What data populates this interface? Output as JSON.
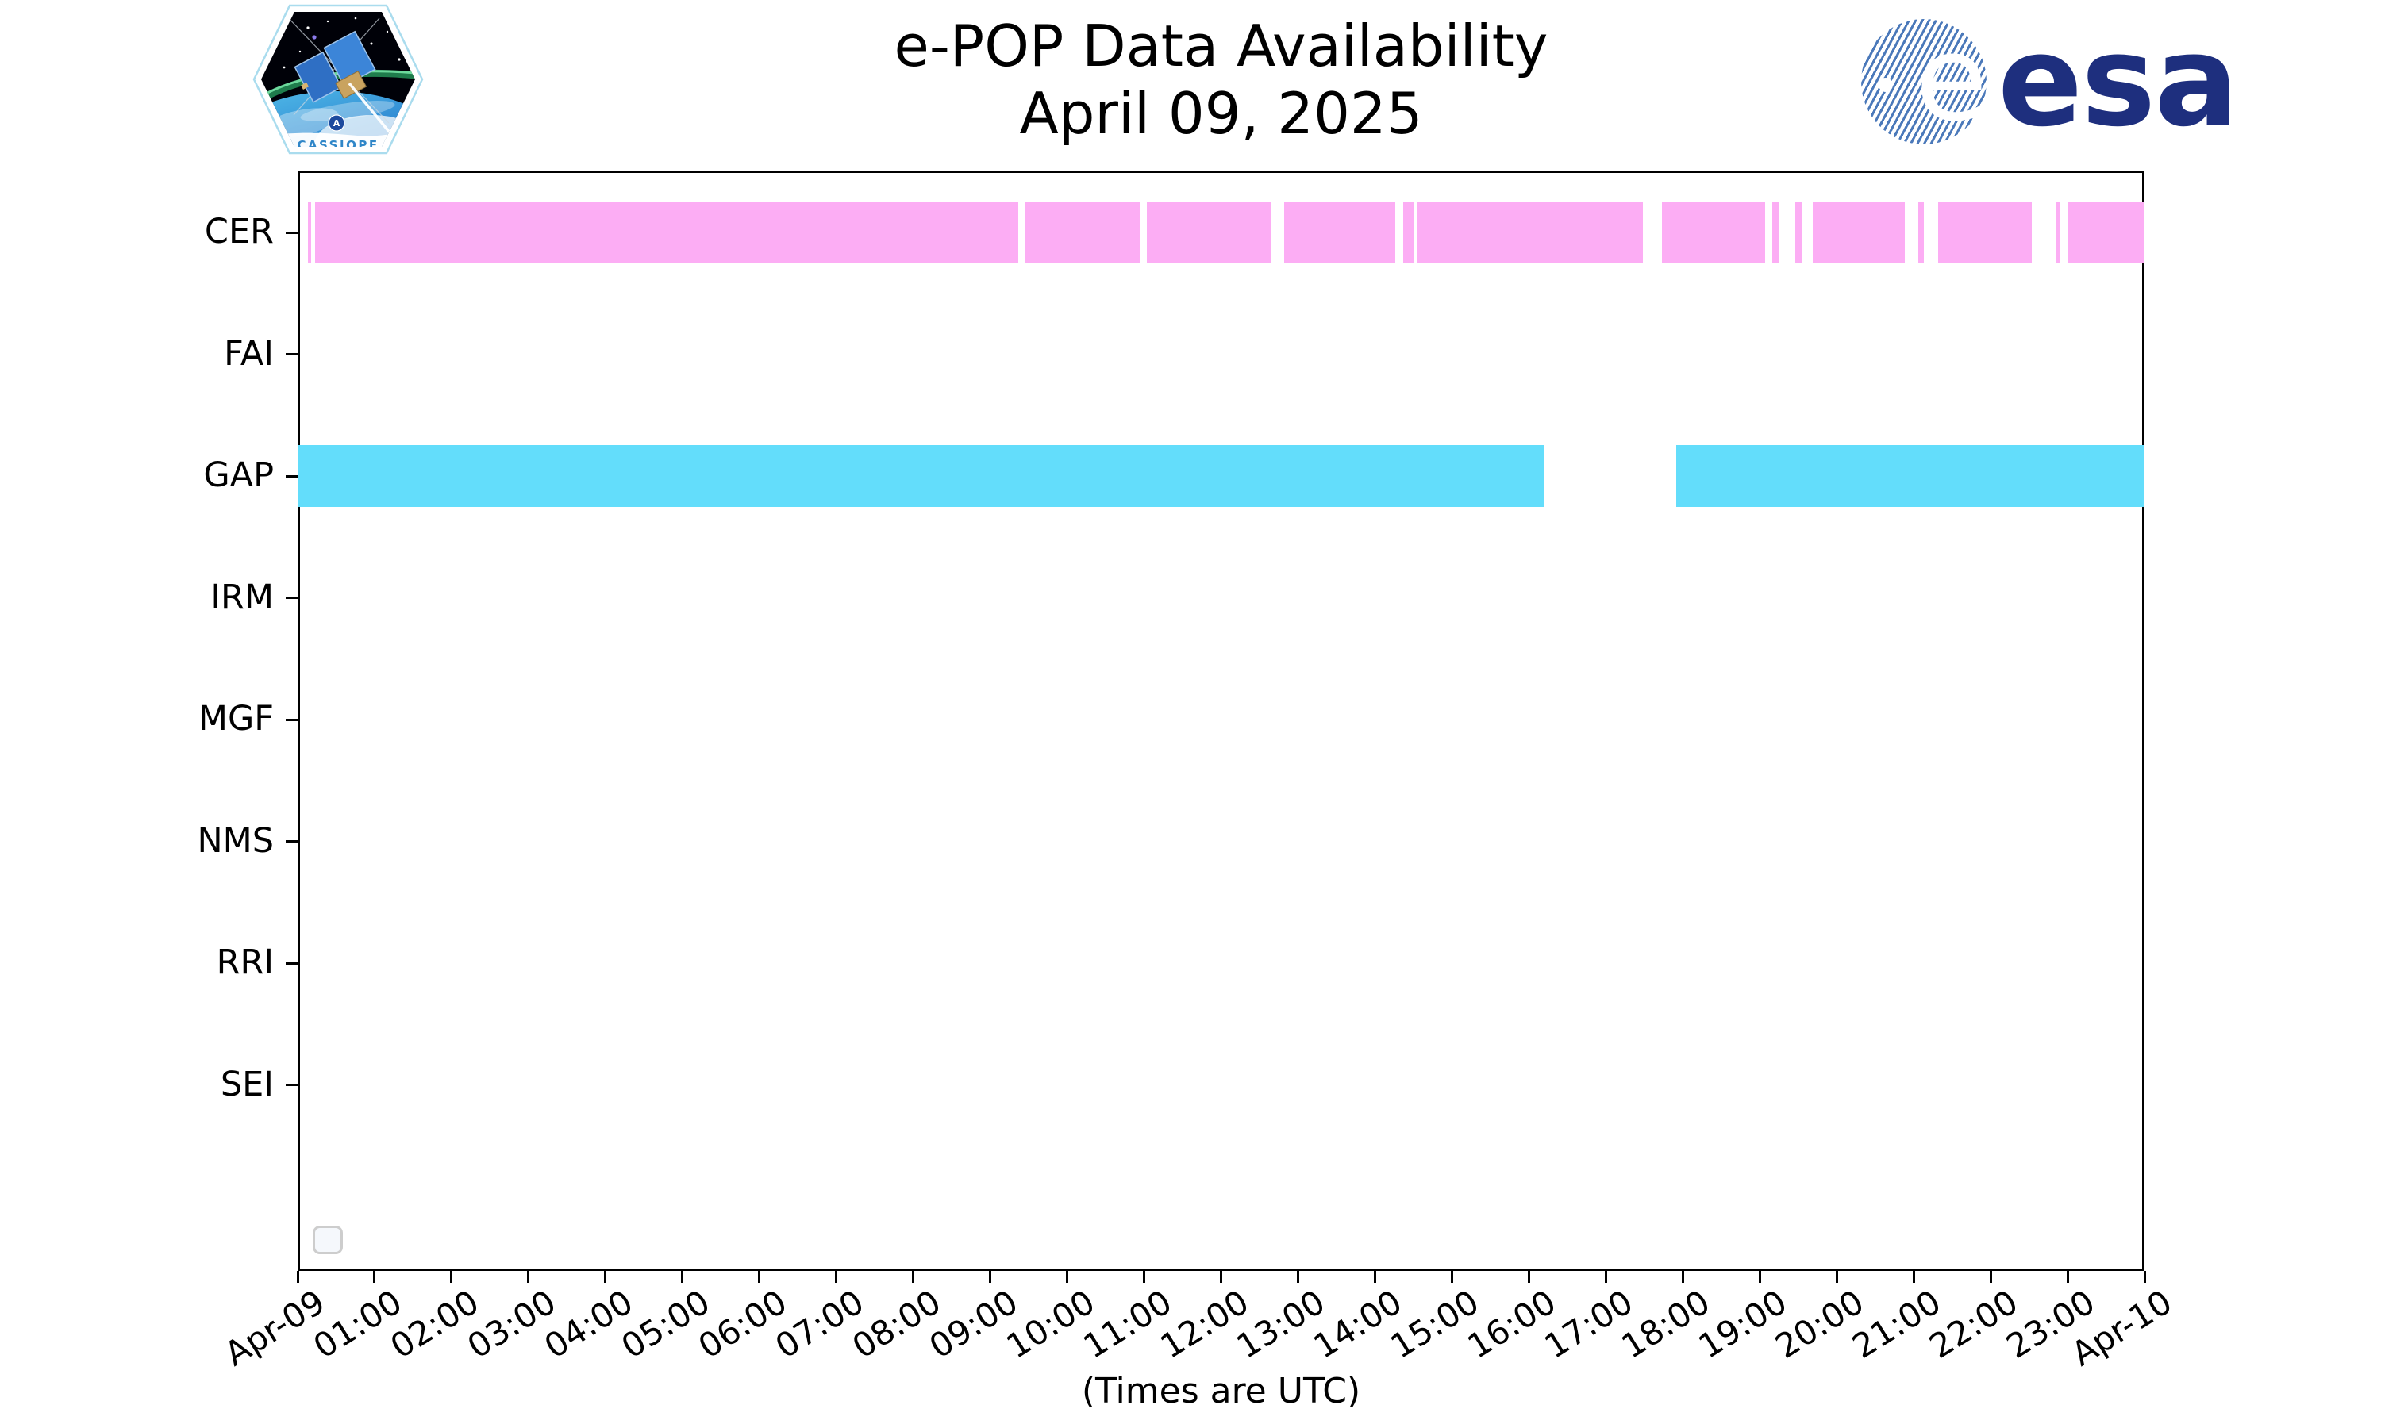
{
  "header": {
    "title": "e-POP Data Availability",
    "date": "April 09, 2025",
    "cassiope_patch_text": "CASSIOPE",
    "esa_wordmark": "esa",
    "esa_globe_letter": "e"
  },
  "footer": {
    "times_note": "(Times are UTC)"
  },
  "colors": {
    "cer_bar": "#fcadf4",
    "gap_bar": "#63ddfb",
    "axis": "#000000",
    "esa_wordmark_blue": "#1e2f7e",
    "esa_globe_blue": "#4b79ba",
    "cassiope_text_blue": "#2f86c8",
    "legend_border": "#cdcdcd",
    "legend_fill": "#f5f8fc"
  },
  "chart_data": {
    "type": "timeline",
    "title": "e-POP Data Availability",
    "subtitle": "April 09, 2025",
    "xlabel": "(Times are UTC)",
    "xlim_hours": [
      0,
      24
    ],
    "x_tick_labels": [
      "Apr-09",
      "01:00",
      "02:00",
      "03:00",
      "04:00",
      "05:00",
      "06:00",
      "07:00",
      "08:00",
      "09:00",
      "10:00",
      "11:00",
      "12:00",
      "13:00",
      "14:00",
      "15:00",
      "16:00",
      "17:00",
      "18:00",
      "19:00",
      "20:00",
      "21:00",
      "22:00",
      "23:00",
      "Apr-10"
    ],
    "rows": [
      "CER",
      "FAI",
      "GAP",
      "IRM",
      "MGF",
      "NMS",
      "RRI",
      "SEI"
    ],
    "grid": false,
    "legend_visible_empty_box": true,
    "series": [
      {
        "name": "CER",
        "color": "#fcadf4",
        "intervals_hours": [
          [
            0.13,
            0.18
          ],
          [
            0.23,
            9.36
          ],
          [
            9.46,
            10.94
          ],
          [
            11.04,
            12.65
          ],
          [
            12.82,
            14.26
          ],
          [
            14.37,
            14.5
          ],
          [
            14.55,
            17.48
          ],
          [
            17.73,
            19.07
          ],
          [
            19.16,
            19.25
          ],
          [
            19.46,
            19.54
          ],
          [
            19.69,
            20.89
          ],
          [
            21.06,
            21.13
          ],
          [
            21.32,
            22.54
          ],
          [
            22.84,
            22.9
          ],
          [
            23.0,
            24.0
          ]
        ]
      },
      {
        "name": "FAI",
        "color": null,
        "intervals_hours": []
      },
      {
        "name": "GAP",
        "color": "#63ddfb",
        "intervals_hours": [
          [
            0.0,
            16.2
          ],
          [
            17.92,
            24.0
          ]
        ]
      },
      {
        "name": "IRM",
        "color": null,
        "intervals_hours": []
      },
      {
        "name": "MGF",
        "color": null,
        "intervals_hours": []
      },
      {
        "name": "NMS",
        "color": null,
        "intervals_hours": []
      },
      {
        "name": "RRI",
        "color": null,
        "intervals_hours": []
      },
      {
        "name": "SEI",
        "color": null,
        "intervals_hours": []
      }
    ]
  }
}
